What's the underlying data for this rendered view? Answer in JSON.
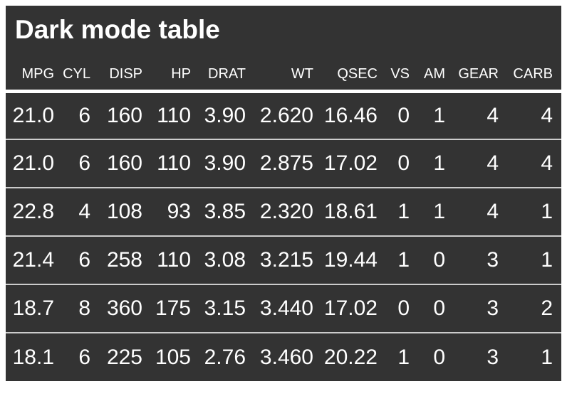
{
  "title": "Dark mode table",
  "colors": {
    "page_bg": "#ffffff",
    "panel_bg": "#333333",
    "text": "#ffffff",
    "header_rule": "#ffffff",
    "row_rule": "#cccccc"
  },
  "chart_data": {
    "type": "table",
    "title": "Dark mode table",
    "columns": [
      "MPG",
      "CYL",
      "DISP",
      "HP",
      "DRAT",
      "WT",
      "QSEC",
      "VS",
      "AM",
      "GEAR",
      "CARB"
    ],
    "rows": [
      [
        "21.0",
        "6",
        "160",
        "110",
        "3.90",
        "2.620",
        "16.46",
        "0",
        "1",
        "4",
        "4"
      ],
      [
        "21.0",
        "6",
        "160",
        "110",
        "3.90",
        "2.875",
        "17.02",
        "0",
        "1",
        "4",
        "4"
      ],
      [
        "22.8",
        "4",
        "108",
        "93",
        "3.85",
        "2.320",
        "18.61",
        "1",
        "1",
        "4",
        "1"
      ],
      [
        "21.4",
        "6",
        "258",
        "110",
        "3.08",
        "3.215",
        "19.44",
        "1",
        "0",
        "3",
        "1"
      ],
      [
        "18.7",
        "8",
        "360",
        "175",
        "3.15",
        "3.440",
        "17.02",
        "0",
        "0",
        "3",
        "2"
      ],
      [
        "18.1",
        "6",
        "225",
        "105",
        "2.76",
        "3.460",
        "20.22",
        "1",
        "0",
        "3",
        "1"
      ]
    ]
  }
}
